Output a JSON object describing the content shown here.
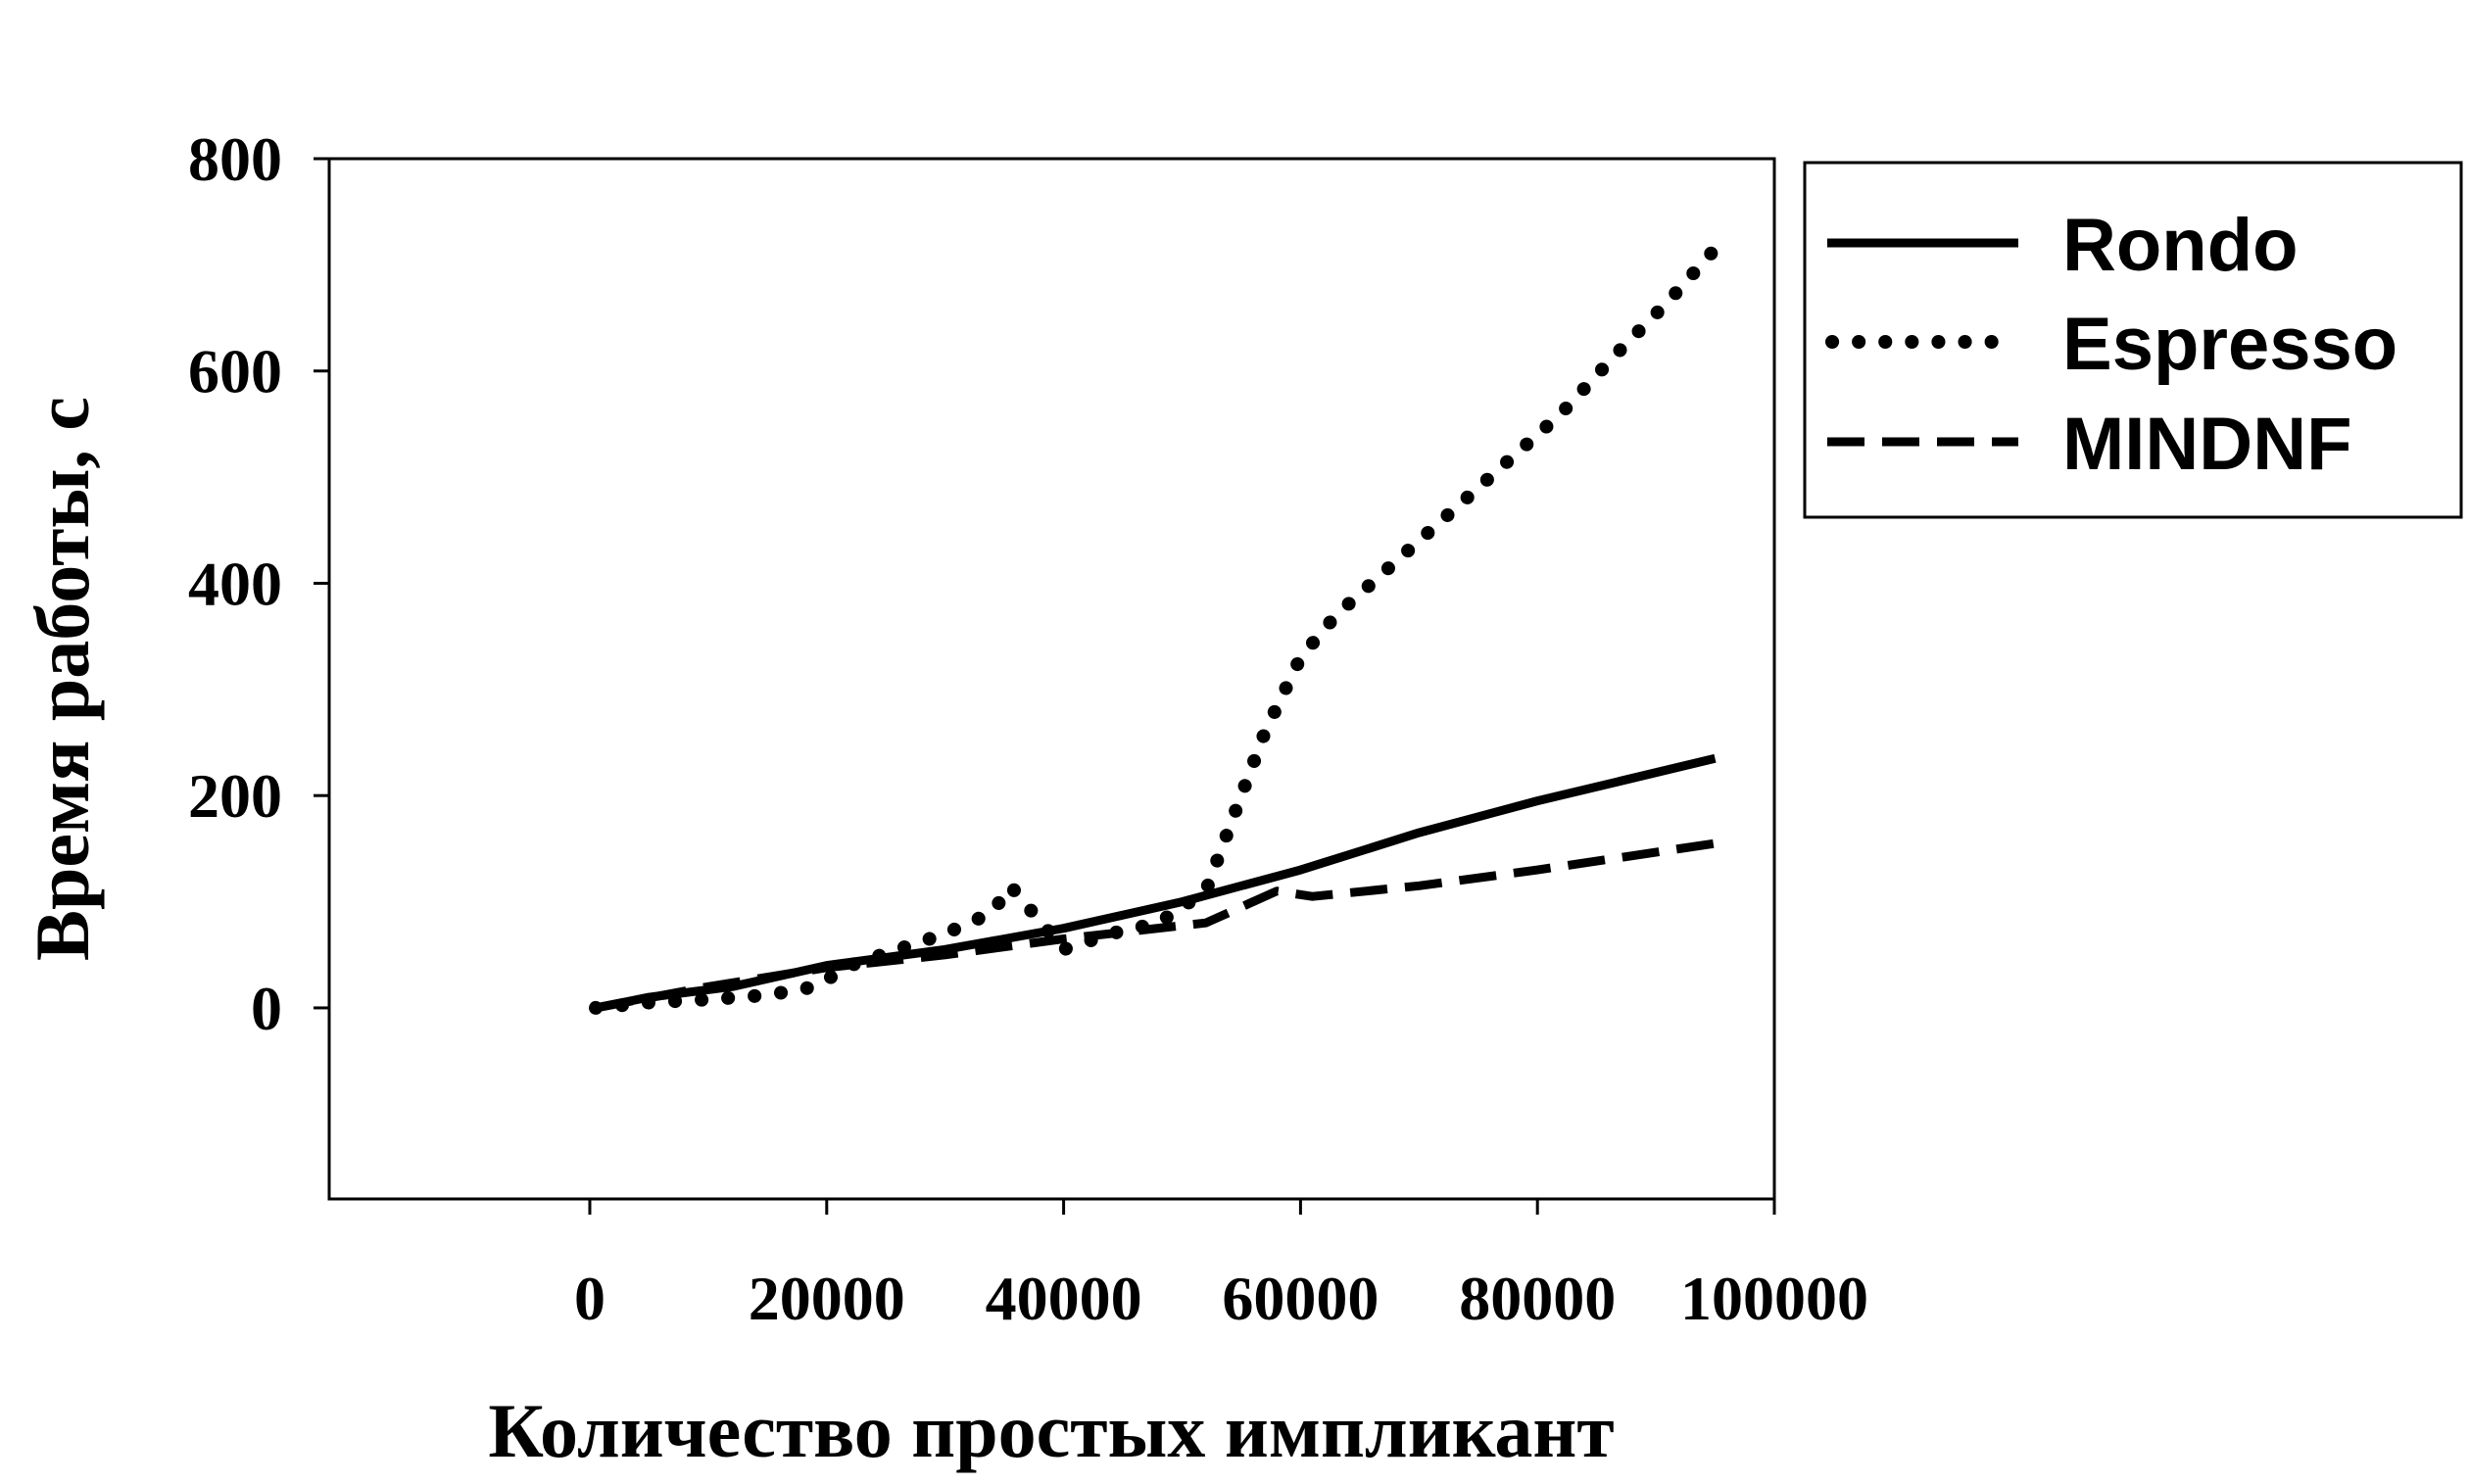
{
  "chart_data": {
    "type": "line",
    "xlabel": "Количество простых импликант",
    "ylabel": "Время работы, с",
    "xlim": [
      -22000,
      100000
    ],
    "ylim": [
      -180,
      800
    ],
    "xticks": [
      0,
      20000,
      40000,
      60000,
      80000,
      100000
    ],
    "yticks": [
      0,
      200,
      400,
      600,
      800
    ],
    "xtick_labels": [
      "0",
      "20000",
      "40000",
      "60000",
      "80000",
      "100000"
    ],
    "ytick_labels": [
      "0",
      "200",
      "400",
      "600",
      "800"
    ],
    "grid": false,
    "legend_position": "right",
    "series": [
      {
        "name": "Rondo",
        "style": "solid",
        "x": [
          500,
          5000,
          12000,
          20000,
          30000,
          40000,
          50000,
          60000,
          70000,
          80000,
          95000
        ],
        "y": [
          0,
          10,
          20,
          40,
          55,
          75,
          100,
          130,
          165,
          195,
          235
        ]
      },
      {
        "name": "Espresso",
        "style": "dotted",
        "x": [
          500,
          5000,
          10000,
          15000,
          19000,
          22000,
          26000,
          30000,
          34000,
          35500,
          37000,
          40000,
          44000,
          48000,
          52000,
          53000,
          55000,
          57000,
          60000,
          63000,
          67000,
          72000,
          77000,
          82000,
          87000,
          91000,
          95000
        ],
        "y": [
          0,
          5,
          8,
          12,
          20,
          40,
          55,
          70,
          90,
          115,
          95,
          55,
          70,
          80,
          110,
          140,
          200,
          260,
          330,
          370,
          410,
          460,
          510,
          560,
          620,
          665,
          715
        ]
      },
      {
        "name": "MINDNF",
        "style": "dashed",
        "x": [
          500,
          10000,
          20000,
          30000,
          40000,
          52000,
          58000,
          61000,
          70000,
          80000,
          95000
        ],
        "y": [
          0,
          20,
          38,
          50,
          65,
          80,
          110,
          105,
          115,
          130,
          155
        ]
      }
    ]
  },
  "colors": {
    "line": "#000000",
    "background": "#ffffff"
  }
}
